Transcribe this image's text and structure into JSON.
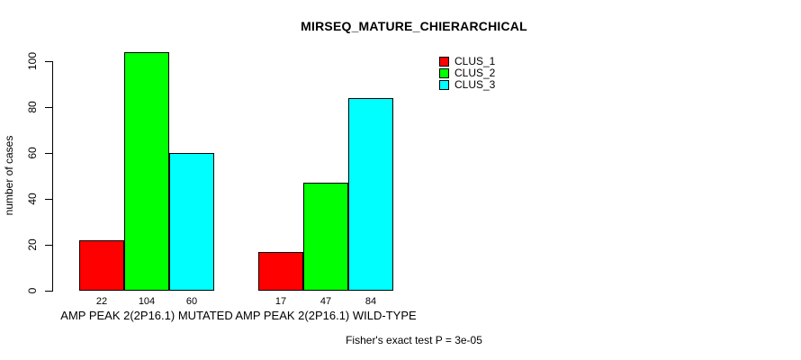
{
  "chart_data": {
    "type": "bar",
    "title": "MIRSEQ_MATURE_CHIERARCHICAL",
    "categories": [
      "AMP PEAK 2(2P16.1) MUTATED",
      "AMP PEAK 2(2P16.1) WILD-TYPE"
    ],
    "series": [
      {
        "name": "CLUS_1",
        "color": "#ff0000",
        "values": [
          22,
          17
        ]
      },
      {
        "name": "CLUS_2",
        "color": "#00ff00",
        "values": [
          104,
          47
        ]
      },
      {
        "name": "CLUS_3",
        "color": "#00ffff",
        "values": [
          60,
          84
        ]
      }
    ],
    "xlabel": "",
    "ylabel": "number of cases",
    "yticks": [
      0,
      20,
      40,
      60,
      80,
      100
    ],
    "ylim": [
      0,
      104
    ],
    "bar_value_labels": [
      [
        22,
        104,
        60
      ],
      [
        17,
        47,
        84
      ]
    ],
    "grid": false,
    "legend_position": "top-right",
    "annotation": "Fisher's exact test P = 3e-05"
  }
}
